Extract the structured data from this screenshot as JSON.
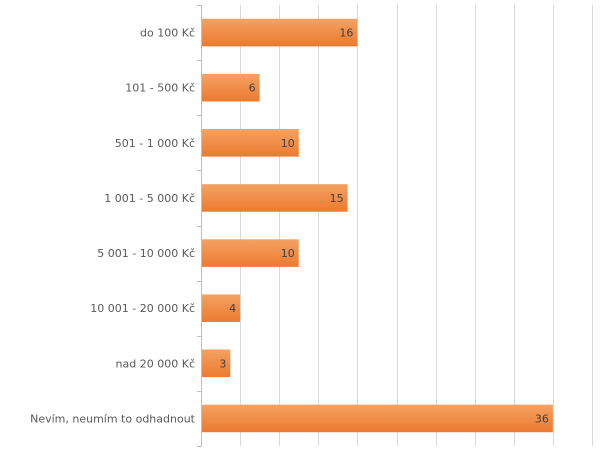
{
  "chart_data": {
    "type": "bar",
    "orientation": "horizontal",
    "categories": [
      "do 100 Kč",
      "101 - 500 Kč",
      "501 - 1 000 Kč",
      "1 001 - 5 000 Kč",
      "5 001 - 10 000 Kč",
      "10 001 - 20 000 Kč",
      "nad 20 000 Kč",
      "Nevím, neumím to odhadnout"
    ],
    "values": [
      16,
      6,
      10,
      15,
      10,
      4,
      3,
      36
    ],
    "data_labels": [
      "16",
      "6",
      "10",
      "15",
      "10",
      "4",
      "3",
      "36"
    ],
    "title": "",
    "xlabel": "",
    "ylabel": "",
    "xlim": [
      0,
      40
    ],
    "grid": true,
    "legend": "none",
    "bar_color_top": "#f4a262",
    "bar_color_bottom": "#ec7a30"
  }
}
